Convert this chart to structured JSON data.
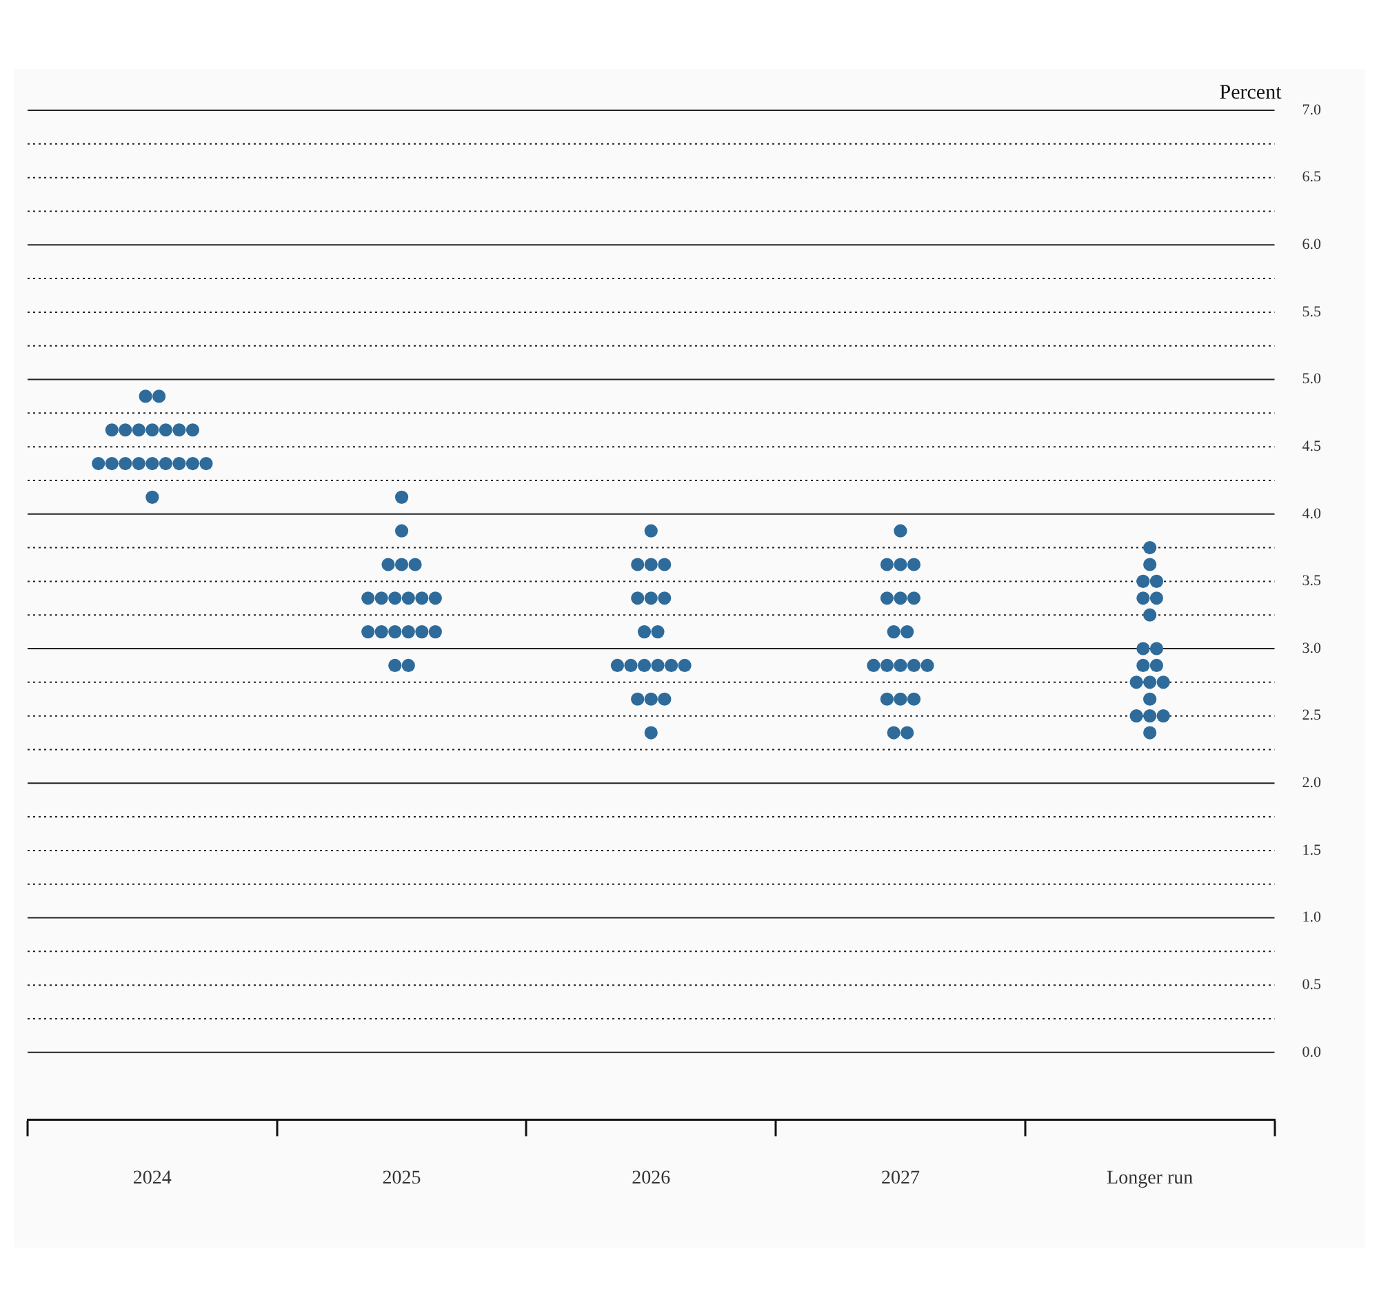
{
  "chart_data": {
    "type": "scatter",
    "ylabel": "Percent",
    "categories": [
      "2024",
      "2025",
      "2026",
      "2027",
      "Longer run"
    ],
    "marker": "circle",
    "grid": "y",
    "ylim": [
      -0.5,
      7
    ],
    "yticks": [
      {
        "value": 0,
        "label": "0.0"
      },
      {
        "value": 0.25,
        "label": null
      },
      {
        "value": 0.5,
        "label": "0.5"
      },
      {
        "value": 0.75,
        "label": null
      },
      {
        "value": 1,
        "label": "1.0"
      },
      {
        "value": 1.25,
        "label": null
      },
      {
        "value": 1.5,
        "label": "1.5"
      },
      {
        "value": 1.75,
        "label": null
      },
      {
        "value": 2,
        "label": "2.0"
      },
      {
        "value": 2.25,
        "label": null
      },
      {
        "value": 2.5,
        "label": "2.5"
      },
      {
        "value": 2.75,
        "label": null
      },
      {
        "value": 3,
        "label": "3.0"
      },
      {
        "value": 3.25,
        "label": null
      },
      {
        "value": 3.5,
        "label": "3.5"
      },
      {
        "value": 3.75,
        "label": null
      },
      {
        "value": 4,
        "label": "4.0"
      },
      {
        "value": 4.25,
        "label": null
      },
      {
        "value": 4.5,
        "label": "4.5"
      },
      {
        "value": 4.75,
        "label": null
      },
      {
        "value": 5,
        "label": "5.0"
      },
      {
        "value": 5.25,
        "label": null
      },
      {
        "value": 5.5,
        "label": "5.5"
      },
      {
        "value": 5.75,
        "label": null
      },
      {
        "value": 6,
        "label": "6.0"
      },
      {
        "value": 6.25,
        "label": null
      },
      {
        "value": 6.5,
        "label": "6.5"
      },
      {
        "value": 6.75,
        "label": null
      },
      {
        "value": 7,
        "label": "7.0"
      }
    ],
    "series": [
      {
        "color": "#2e6b9a",
        "values": [
          4.875,
          4.125,
          3.875,
          3.875,
          3.75
        ]
      },
      {
        "color": "#2e6b9a",
        "values": [
          4.875,
          3.875,
          3.625,
          3.625,
          3.625
        ]
      },
      {
        "color": "#2e6b9a",
        "values": [
          4.625,
          3.625,
          3.625,
          3.625,
          3.5
        ]
      },
      {
        "color": "#2e6b9a",
        "values": [
          4.625,
          3.625,
          3.625,
          3.625,
          3.5
        ]
      },
      {
        "color": "#2e6b9a",
        "values": [
          4.625,
          3.625,
          3.375,
          3.375,
          3.375
        ]
      },
      {
        "color": "#2e6b9a",
        "values": [
          4.625,
          3.375,
          3.375,
          3.375,
          3.375
        ]
      },
      {
        "color": "#2e6b9a",
        "values": [
          4.625,
          3.375,
          3.375,
          3.375,
          3.25
        ]
      },
      {
        "color": "#2e6b9a",
        "values": [
          4.625,
          3.375,
          3.125,
          3.125,
          3
        ]
      },
      {
        "color": "#2e6b9a",
        "values": [
          4.625,
          3.375,
          3.125,
          3.125,
          3
        ]
      },
      {
        "color": "#2e6b9a",
        "values": [
          4.375,
          3.375,
          2.875,
          2.875,
          2.875
        ]
      },
      {
        "color": "#2e6b9a",
        "values": [
          4.375,
          3.375,
          2.875,
          2.875,
          2.875
        ]
      },
      {
        "color": "#2e6b9a",
        "values": [
          4.375,
          3.125,
          2.875,
          2.875,
          2.75
        ]
      },
      {
        "color": "#2e6b9a",
        "values": [
          4.375,
          3.125,
          2.875,
          2.875,
          2.75
        ]
      },
      {
        "color": "#2e6b9a",
        "values": [
          4.375,
          3.125,
          2.875,
          2.875,
          2.75
        ]
      },
      {
        "color": "#2e6b9a",
        "values": [
          4.375,
          3.125,
          2.875,
          2.625,
          2.625
        ]
      },
      {
        "color": "#2e6b9a",
        "values": [
          4.375,
          3.125,
          2.625,
          2.625,
          2.5
        ]
      },
      {
        "color": "#2e6b9a",
        "values": [
          4.375,
          3.125,
          2.625,
          2.625,
          2.5
        ]
      },
      {
        "color": "#2e6b9a",
        "values": [
          4.375,
          2.875,
          2.625,
          2.375,
          2.5
        ]
      },
      {
        "color": "#2e6b9a",
        "values": [
          4.125,
          2.875,
          2.375,
          2.375,
          2.375
        ]
      }
    ]
  }
}
